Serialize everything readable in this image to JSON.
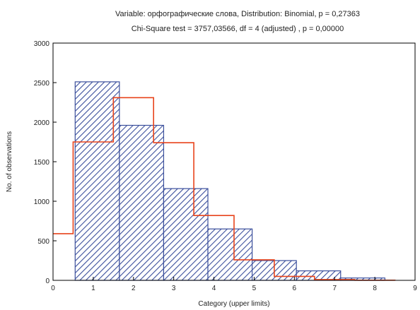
{
  "chart_data": {
    "type": "bar",
    "title": "Variable: орфографические слова, Distribution: Binomial, p = 0,27363",
    "subtitle": "Chi-Square test = 3757,03566, df = 4 (adjusted) , p = 0,00000",
    "xlabel": "Category (upper limits)",
    "ylabel": "No. of observations",
    "xlim": [
      0,
      9
    ],
    "ylim": [
      0,
      3000
    ],
    "x_ticks": [
      "0",
      "1",
      "2",
      "3",
      "4",
      "5",
      "6",
      "7",
      "8",
      "9"
    ],
    "y_ticks": [
      "0",
      "500",
      "1000",
      "1500",
      "2000",
      "2500",
      "3000"
    ],
    "grid": false,
    "legend": "none",
    "bars": {
      "name": "observed",
      "bin_edges": [
        0.55,
        1.65,
        2.75,
        3.85,
        4.95,
        6.05,
        7.15,
        8.25
      ],
      "values": [
        2510,
        1960,
        1160,
        650,
        250,
        120,
        30
      ],
      "fill_color": "#3b4f9c",
      "hatch": "diagonal"
    },
    "expected_step": {
      "name": "expected",
      "color": "#e8441c",
      "x": [
        0,
        0.5,
        0.5,
        1.5,
        1.5,
        2.5,
        2.5,
        3.5,
        3.5,
        4.5,
        4.5,
        5.5,
        5.5,
        6.5,
        6.5,
        7.5,
        7.5,
        8.5,
        8.5
      ],
      "y": [
        590,
        590,
        1750,
        1750,
        2310,
        2310,
        1740,
        1740,
        820,
        820,
        260,
        260,
        50,
        50,
        10,
        10,
        2,
        2,
        0
      ]
    }
  }
}
